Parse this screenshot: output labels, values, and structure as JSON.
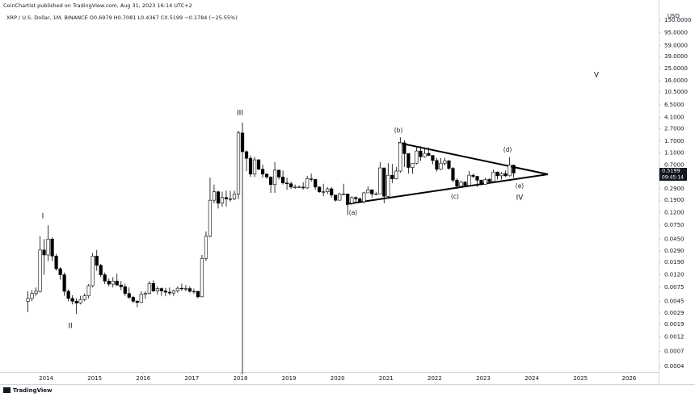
{
  "header": {
    "publisher": "CoinChartist published on TradingView.com, Aug 31, 2023 16:14 UTC+2",
    "legend": "XRP / U.S. Dollar, 1M, BINANCE  O0.6979 H0.7081 L0.4367 C0.5199 −0.1784 (−25.55%)",
    "currency": "USD",
    "countdown": "09:45:14",
    "footer": "TradingView"
  },
  "chart_data": {
    "type": "candlestick",
    "log_scale": true,
    "xlim": [
      2013.05,
      2026.61
    ],
    "xticks": [
      2014,
      2015,
      2016,
      2017,
      2018,
      2019,
      2020,
      2021,
      2022,
      2023,
      2024,
      2025,
      2026
    ],
    "ylim": [
      0.00029,
      250
    ],
    "yticks": [
      {
        "value": 150,
        "label": "150.0000"
      },
      {
        "value": 95,
        "label": "95.0000"
      },
      {
        "value": 59,
        "label": "59.0000"
      },
      {
        "value": 39,
        "label": "39.0000"
      },
      {
        "value": 25,
        "label": "25.0000"
      },
      {
        "value": 16,
        "label": "16.0000"
      },
      {
        "value": 10.5,
        "label": "10.5000"
      },
      {
        "value": 6.5,
        "label": "6.5000"
      },
      {
        "value": 4.1,
        "label": "4.1000"
      },
      {
        "value": 2.7,
        "label": "2.7000"
      },
      {
        "value": 1.7,
        "label": "1.7000"
      },
      {
        "value": 1.1,
        "label": "1.1000"
      },
      {
        "value": 0.7,
        "label": "0.7000"
      },
      {
        "value": 0.29,
        "label": "0.2900"
      },
      {
        "value": 0.19,
        "label": "0.1900"
      },
      {
        "value": 0.12,
        "label": "0.1200"
      },
      {
        "value": 0.075,
        "label": "0.0750"
      },
      {
        "value": 0.045,
        "label": "0.0450"
      },
      {
        "value": 0.029,
        "label": "0.0290"
      },
      {
        "value": 0.019,
        "label": "0.0190"
      },
      {
        "value": 0.012,
        "label": "0.0120"
      },
      {
        "value": 0.0075,
        "label": "0.0075"
      },
      {
        "value": 0.0045,
        "label": "0.0045"
      },
      {
        "value": 0.0029,
        "label": "0.0029"
      },
      {
        "value": 0.0019,
        "label": "0.0019"
      },
      {
        "value": 0.0012,
        "label": "0.0012"
      },
      {
        "value": 0.0007,
        "label": "0.0007"
      },
      {
        "value": 0.0004,
        "label": "0.0004"
      }
    ],
    "up_color": "#ffffff",
    "down_color": "#000000",
    "outline_color": "#000000",
    "annotations": [
      "I",
      "II",
      "III",
      "(a)",
      "(b)",
      "(c)",
      "(d)",
      "(e)",
      "IV",
      "V"
    ],
    "x": [
      2013.625,
      2013.708,
      2013.792,
      2013.875,
      2013.958,
      2014.042,
      2014.125,
      2014.208,
      2014.292,
      2014.375,
      2014.458,
      2014.542,
      2014.625,
      2014.708,
      2014.792,
      2014.875,
      2014.958,
      2015.042,
      2015.125,
      2015.208,
      2015.292,
      2015.375,
      2015.458,
      2015.542,
      2015.625,
      2015.708,
      2015.792,
      2015.875,
      2015.958,
      2016.042,
      2016.125,
      2016.208,
      2016.292,
      2016.375,
      2016.458,
      2016.542,
      2016.625,
      2016.708,
      2016.792,
      2016.875,
      2016.958,
      2017.042,
      2017.125,
      2017.208,
      2017.292,
      2017.375,
      2017.458,
      2017.542,
      2017.625,
      2017.708,
      2017.792,
      2017.875,
      2017.958,
      2018.042,
      2018.125,
      2018.208,
      2018.292,
      2018.375,
      2018.458,
      2018.542,
      2018.625,
      2018.708,
      2018.792,
      2018.875,
      2018.958,
      2019.042,
      2019.125,
      2019.208,
      2019.292,
      2019.375,
      2019.458,
      2019.542,
      2019.625,
      2019.708,
      2019.792,
      2019.875,
      2019.958,
      2020.042,
      2020.125,
      2020.208,
      2020.292,
      2020.375,
      2020.458,
      2020.542,
      2020.625,
      2020.708,
      2020.792,
      2020.875,
      2020.958,
      2021.042,
      2021.125,
      2021.208,
      2021.292,
      2021.375,
      2021.458,
      2021.542,
      2021.625,
      2021.708,
      2021.792,
      2021.875,
      2021.958,
      2022.042,
      2022.125,
      2022.208,
      2022.292,
      2022.375,
      2022.458,
      2022.542,
      2022.625,
      2022.708,
      2022.792,
      2022.875,
      2022.958,
      2023.042,
      2023.125,
      2023.208,
      2023.292,
      2023.375,
      2023.458,
      2023.542,
      2023.625
    ],
    "ohlc": [
      [
        0.0045,
        0.0065,
        0.003,
        0.005
      ],
      [
        0.005,
        0.0068,
        0.0045,
        0.006
      ],
      [
        0.006,
        0.0075,
        0.0055,
        0.0065
      ],
      [
        0.0065,
        0.05,
        0.0062,
        0.03
      ],
      [
        0.03,
        0.045,
        0.012,
        0.025
      ],
      [
        0.025,
        0.075,
        0.02,
        0.045
      ],
      [
        0.045,
        0.048,
        0.02,
        0.024
      ],
      [
        0.024,
        0.026,
        0.014,
        0.015
      ],
      [
        0.015,
        0.016,
        0.01,
        0.012
      ],
      [
        0.012,
        0.013,
        0.0055,
        0.0065
      ],
      [
        0.0065,
        0.007,
        0.0045,
        0.005
      ],
      [
        0.005,
        0.0056,
        0.004,
        0.0045
      ],
      [
        0.0045,
        0.005,
        0.0028,
        0.0042
      ],
      [
        0.0042,
        0.0055,
        0.004,
        0.0048
      ],
      [
        0.0048,
        0.006,
        0.0045,
        0.0055
      ],
      [
        0.0055,
        0.0085,
        0.005,
        0.008
      ],
      [
        0.008,
        0.027,
        0.0075,
        0.024
      ],
      [
        0.024,
        0.03,
        0.014,
        0.017
      ],
      [
        0.017,
        0.018,
        0.011,
        0.012
      ],
      [
        0.012,
        0.013,
        0.0085,
        0.0095
      ],
      [
        0.0095,
        0.0105,
        0.0078,
        0.0085
      ],
      [
        0.0085,
        0.011,
        0.0075,
        0.0095
      ],
      [
        0.0095,
        0.0125,
        0.008,
        0.0082
      ],
      [
        0.0082,
        0.0095,
        0.0068,
        0.0077
      ],
      [
        0.0077,
        0.0086,
        0.0055,
        0.006
      ],
      [
        0.006,
        0.0075,
        0.0049,
        0.0052
      ],
      [
        0.0052,
        0.0055,
        0.0042,
        0.0045
      ],
      [
        0.0045,
        0.0047,
        0.0036,
        0.0043
      ],
      [
        0.0043,
        0.0065,
        0.0042,
        0.0058
      ],
      [
        0.0058,
        0.0065,
        0.0049,
        0.006
      ],
      [
        0.006,
        0.0095,
        0.0058,
        0.0087
      ],
      [
        0.0087,
        0.0098,
        0.0063,
        0.0066
      ],
      [
        0.0066,
        0.0078,
        0.0058,
        0.0072
      ],
      [
        0.0072,
        0.0075,
        0.0055,
        0.0066
      ],
      [
        0.0066,
        0.0074,
        0.0054,
        0.0063
      ],
      [
        0.0063,
        0.0075,
        0.0056,
        0.0061
      ],
      [
        0.0061,
        0.0069,
        0.0055,
        0.0066
      ],
      [
        0.0066,
        0.0078,
        0.0062,
        0.0073
      ],
      [
        0.0073,
        0.0086,
        0.0066,
        0.0072
      ],
      [
        0.0072,
        0.0082,
        0.0065,
        0.0072
      ],
      [
        0.0072,
        0.0078,
        0.0062,
        0.0065
      ],
      [
        0.0065,
        0.0072,
        0.0059,
        0.0065
      ],
      [
        0.0065,
        0.0066,
        0.005,
        0.0053
      ],
      [
        0.0053,
        0.025,
        0.0052,
        0.022
      ],
      [
        0.022,
        0.06,
        0.02,
        0.05
      ],
      [
        0.05,
        0.44,
        0.048,
        0.19
      ],
      [
        0.19,
        0.34,
        0.17,
        0.26
      ],
      [
        0.26,
        0.27,
        0.14,
        0.17
      ],
      [
        0.17,
        0.26,
        0.15,
        0.21
      ],
      [
        0.21,
        0.27,
        0.15,
        0.2
      ],
      [
        0.2,
        0.27,
        0.18,
        0.2
      ],
      [
        0.2,
        0.27,
        0.19,
        0.24
      ],
      [
        0.24,
        2.5,
        0.2,
        2.3
      ],
      [
        2.3,
        3.4,
        0.0003,
        1.15
      ],
      [
        1.15,
        1.2,
        0.56,
        0.9
      ],
      [
        0.9,
        1.0,
        0.45,
        0.5
      ],
      [
        0.5,
        0.95,
        0.45,
        0.85
      ],
      [
        0.85,
        0.87,
        0.58,
        0.6
      ],
      [
        0.6,
        0.71,
        0.44,
        0.5
      ],
      [
        0.5,
        0.52,
        0.42,
        0.45
      ],
      [
        0.45,
        0.46,
        0.25,
        0.34
      ],
      [
        0.34,
        0.78,
        0.25,
        0.58
      ],
      [
        0.58,
        0.59,
        0.41,
        0.45
      ],
      [
        0.45,
        0.57,
        0.34,
        0.36
      ],
      [
        0.36,
        0.44,
        0.28,
        0.35
      ],
      [
        0.35,
        0.38,
        0.29,
        0.31
      ],
      [
        0.31,
        0.34,
        0.29,
        0.31
      ],
      [
        0.31,
        0.33,
        0.3,
        0.31
      ],
      [
        0.31,
        0.37,
        0.28,
        0.3
      ],
      [
        0.3,
        0.47,
        0.29,
        0.42
      ],
      [
        0.42,
        0.51,
        0.38,
        0.41
      ],
      [
        0.41,
        0.42,
        0.28,
        0.31
      ],
      [
        0.31,
        0.32,
        0.25,
        0.26
      ],
      [
        0.26,
        0.35,
        0.22,
        0.26
      ],
      [
        0.26,
        0.31,
        0.24,
        0.29
      ],
      [
        0.29,
        0.31,
        0.21,
        0.23
      ],
      [
        0.23,
        0.23,
        0.18,
        0.19
      ],
      [
        0.19,
        0.25,
        0.19,
        0.24
      ],
      [
        0.24,
        0.35,
        0.23,
        0.24
      ],
      [
        0.24,
        0.24,
        0.11,
        0.17
      ],
      [
        0.17,
        0.22,
        0.16,
        0.21
      ],
      [
        0.21,
        0.22,
        0.18,
        0.2
      ],
      [
        0.2,
        0.21,
        0.17,
        0.18
      ],
      [
        0.18,
        0.26,
        0.17,
        0.25
      ],
      [
        0.25,
        0.32,
        0.25,
        0.28
      ],
      [
        0.28,
        0.28,
        0.21,
        0.24
      ],
      [
        0.24,
        0.26,
        0.23,
        0.24
      ],
      [
        0.24,
        0.78,
        0.24,
        0.63
      ],
      [
        0.63,
        0.63,
        0.17,
        0.22
      ],
      [
        0.22,
        0.75,
        0.21,
        0.48
      ],
      [
        0.48,
        0.73,
        0.36,
        0.42
      ],
      [
        0.42,
        0.65,
        0.41,
        0.56
      ],
      [
        0.56,
        1.96,
        0.53,
        1.6
      ],
      [
        1.6,
        1.76,
        0.65,
        1.07
      ],
      [
        1.07,
        1.08,
        0.51,
        0.64
      ],
      [
        0.64,
        0.75,
        0.51,
        0.75
      ],
      [
        0.75,
        1.35,
        0.72,
        1.18
      ],
      [
        1.18,
        1.41,
        0.82,
        0.95
      ],
      [
        0.95,
        1.35,
        0.92,
        1.08
      ],
      [
        1.08,
        1.35,
        0.98,
        1.0
      ],
      [
        1.0,
        1.0,
        0.72,
        0.83
      ],
      [
        0.83,
        0.91,
        0.55,
        0.6
      ],
      [
        0.6,
        0.91,
        0.58,
        0.75
      ],
      [
        0.75,
        0.91,
        0.69,
        0.82
      ],
      [
        0.82,
        0.84,
        0.59,
        0.62
      ],
      [
        0.62,
        0.65,
        0.37,
        0.4
      ],
      [
        0.4,
        0.43,
        0.29,
        0.32
      ],
      [
        0.32,
        0.39,
        0.31,
        0.37
      ],
      [
        0.37,
        0.39,
        0.32,
        0.33
      ],
      [
        0.33,
        0.56,
        0.32,
        0.48
      ],
      [
        0.48,
        0.51,
        0.43,
        0.46
      ],
      [
        0.46,
        0.47,
        0.31,
        0.4
      ],
      [
        0.4,
        0.41,
        0.33,
        0.34
      ],
      [
        0.34,
        0.44,
        0.34,
        0.41
      ],
      [
        0.41,
        0.43,
        0.36,
        0.38
      ],
      [
        0.38,
        0.59,
        0.36,
        0.54
      ],
      [
        0.54,
        0.55,
        0.41,
        0.47
      ],
      [
        0.47,
        0.54,
        0.41,
        0.51
      ],
      [
        0.51,
        0.57,
        0.45,
        0.47
      ],
      [
        0.47,
        0.94,
        0.46,
        0.6979
      ],
      [
        0.6979,
        0.7081,
        0.4367,
        0.5199
      ]
    ]
  }
}
